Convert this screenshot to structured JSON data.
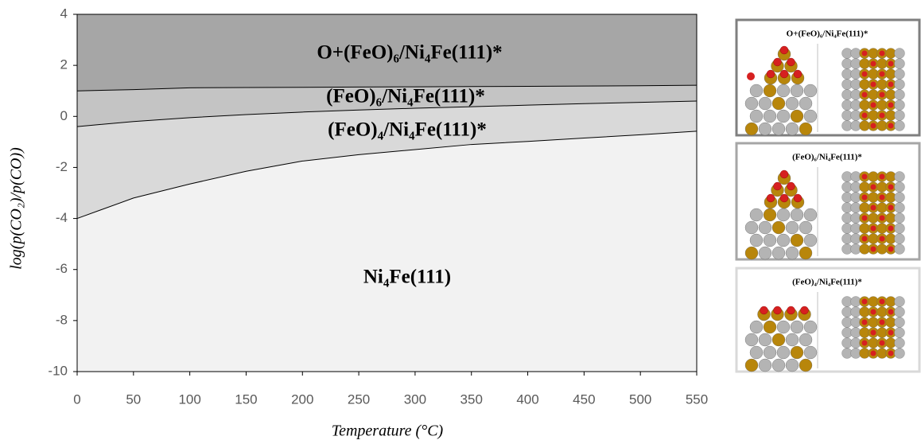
{
  "chart_data": {
    "type": "phase-diagram",
    "x_label": "Temperature (°C)",
    "y_label": "log(p(CO₂)/p(CO))",
    "x": [
      0,
      50,
      100,
      150,
      200,
      250,
      300,
      350,
      400,
      450,
      500,
      550
    ],
    "boundaries": [
      {
        "values": [
          -4,
          -3.2,
          -2.65,
          -2.15,
          -1.75,
          -1.5,
          -1.3,
          -1.1,
          -0.98,
          -0.85,
          -0.72,
          -0.58
        ]
      },
      {
        "values": [
          -0.4,
          -0.2,
          -0.05,
          0.07,
          0.17,
          0.25,
          0.32,
          0.38,
          0.44,
          0.5,
          0.55,
          0.6
        ]
      },
      {
        "values": [
          1.0,
          1.05,
          1.12,
          1.13,
          1.14,
          1.15,
          1.16,
          1.17,
          1.18,
          1.19,
          1.2,
          1.22
        ]
      }
    ],
    "regions": [
      {
        "label": "Ni₄Fe(111)",
        "color": "#f2f2f2"
      },
      {
        "label": "(FeO)₄/Ni₄Fe(111)*",
        "color": "#d9d9d9"
      },
      {
        "label": "(FeO)₆/Ni₄Fe(111)*",
        "color": "#c4c4c4"
      },
      {
        "label": "O+(FeO)₆/Ni₄Fe(111)*",
        "color": "#a6a6a6"
      }
    ],
    "xlim": [
      0,
      550
    ],
    "ylim": [
      -10,
      4
    ],
    "xticks": [
      0,
      50,
      100,
      150,
      200,
      250,
      300,
      350,
      400,
      450,
      500,
      550
    ],
    "yticks": [
      -10,
      -8,
      -6,
      -4,
      -2,
      0,
      2,
      4
    ]
  },
  "structures": [
    {
      "title": "O+(FeO)₆/Ni₄Fe(111)*"
    },
    {
      "title": "(FeO)₆/Ni₄Fe(111)*"
    },
    {
      "title": "(FeO)₄/Ni₄Fe(111)*"
    }
  ]
}
